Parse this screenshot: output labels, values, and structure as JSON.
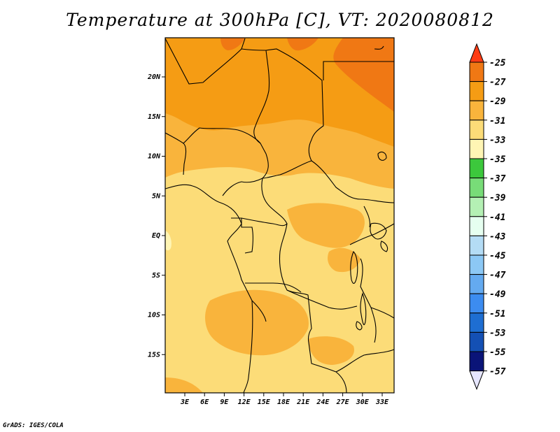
{
  "title": "Temperature at 300hPa [C], VT: 2020080812",
  "credit": "GrADS: IGES/COLA",
  "map": {
    "lat_ticks": [
      {
        "label": "20N",
        "lat": 20
      },
      {
        "label": "15N",
        "lat": 15
      },
      {
        "label": "10N",
        "lat": 10
      },
      {
        "label": "5N",
        "lat": 5
      },
      {
        "label": "EQ",
        "lat": 0
      },
      {
        "label": "5S",
        "lat": -5
      },
      {
        "label": "10S",
        "lat": -10
      },
      {
        "label": "15S",
        "lat": -15
      }
    ],
    "lon_ticks": [
      {
        "label": "3E",
        "lon": 3
      },
      {
        "label": "6E",
        "lon": 6
      },
      {
        "label": "9E",
        "lon": 9
      },
      {
        "label": "12E",
        "lon": 12
      },
      {
        "label": "15E",
        "lon": 15
      },
      {
        "label": "18E",
        "lon": 18
      },
      {
        "label": "21E",
        "lon": 21
      },
      {
        "label": "24E",
        "lon": 24
      },
      {
        "label": "27E",
        "lon": 27
      },
      {
        "label": "30E",
        "lon": 30
      },
      {
        "label": "33E",
        "lon": 33
      }
    ]
  },
  "colorbar": {
    "levels": [
      {
        "label": "-25",
        "color": "#ff3c14"
      },
      {
        "label": "-27",
        "color": "#f07814"
      },
      {
        "label": "-29",
        "color": "#f59c14"
      },
      {
        "label": "-31",
        "color": "#f9b43c"
      },
      {
        "label": "-33",
        "color": "#fcdc78"
      },
      {
        "label": "-35",
        "color": "#fff5b4"
      },
      {
        "label": "-37",
        "color": "#3cc83c"
      },
      {
        "label": "-39",
        "color": "#78dc78"
      },
      {
        "label": "-41",
        "color": "#b4f0b4"
      },
      {
        "label": "-43",
        "color": "#e6fff0"
      },
      {
        "label": "-45",
        "color": "#b4dcf5"
      },
      {
        "label": "-47",
        "color": "#8cc8f5"
      },
      {
        "label": "-49",
        "color": "#64aaf0"
      },
      {
        "label": "-51",
        "color": "#3c8cf0"
      },
      {
        "label": "-53",
        "color": "#1e6ed2"
      },
      {
        "label": "-55",
        "color": "#1450b4"
      },
      {
        "label": "-57",
        "color": "#0a1478"
      }
    ],
    "top_triangle_color": "#ff3c14",
    "bottom_triangle_color": "#e6e6ff"
  }
}
